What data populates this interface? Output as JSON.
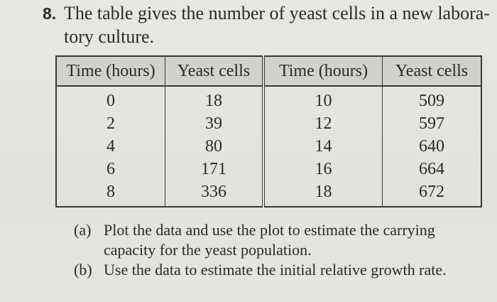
{
  "problem": {
    "number": "8.",
    "line1": "The table gives the number of yeast cells in a new labora-",
    "line2": "tory culture."
  },
  "table": {
    "headers": [
      "Time (hours)",
      "Yeast cells",
      "Time (hours)",
      "Yeast cells"
    ],
    "rows": [
      [
        "0",
        "18",
        "10",
        "509"
      ],
      [
        "2",
        "39",
        "12",
        "597"
      ],
      [
        "4",
        "80",
        "14",
        "640"
      ],
      [
        "6",
        "171",
        "16",
        "664"
      ],
      [
        "8",
        "336",
        "18",
        "672"
      ]
    ]
  },
  "parts": [
    {
      "label": "(a)",
      "text": "Plot the data and use the plot to estimate the carrying capacity for the yeast population."
    },
    {
      "label": "(b)",
      "text": "Use the data to estimate the initial relative growth rate."
    }
  ]
}
